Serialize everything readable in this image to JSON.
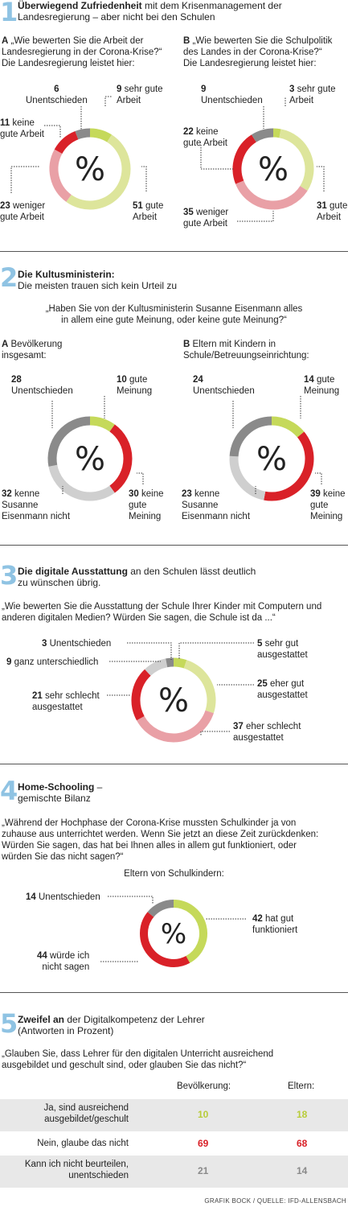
{
  "colors": {
    "green": "#c5d95a",
    "red": "#d92128",
    "pink": "#e9a0a6",
    "dark_gray": "#8a8a8a",
    "light_gray": "#cfcfcf",
    "blue_number": "#8fc3e3"
  },
  "s1": {
    "num": "1",
    "title_bold": "Überwiegend Zufriedenheit",
    "title_rest": " mit dem Krisenmanagement der",
    "title_line2": "Landesregierung – aber nicht bei den Schulen",
    "a_letter": "A",
    "a_q1": " „Wie bewerten Sie die Arbeit der",
    "a_q2": "Landesregierung in der Corona-Krise?“",
    "a_q3": "Die Landesregierung leistet hier:",
    "b_letter": "B",
    "b_q1": " „Wie bewerten Sie die Schulpolitik",
    "b_q2": "des Landes in der Corona-Krise?“",
    "b_q3": "Die Landesregierung leistet hier:"
  },
  "s2": {
    "num": "2",
    "title_bold": "Die Kultusministerin:",
    "title_line2": "Die meisten trauen sich kein Urteil zu",
    "q1": "„Haben Sie von der Kultusministerin Susanne Eisenmann alles",
    "q2": "in allem eine gute Meinung, oder keine gute Meinung?“",
    "a_letter": "A",
    "a_l1": " Bevölkerung",
    "a_l2": "insgesamt:",
    "b_letter": "B",
    "b_l1": " Eltern mit Kindern in",
    "b_l2": "Schule/Betreuungseinrichtung:"
  },
  "s3": {
    "num": "3",
    "title_bold": "Die digitale Ausstattung",
    "title_rest": " an den Schulen lässt deutlich",
    "title_line2": "zu wünschen übrig.",
    "q1": "„Wie bewerten Sie die Ausstattung der Schule Ihrer Kinder mit Computern und",
    "q2": "anderen digitalen Medien? Würden Sie sagen, die Schule ist da ...“"
  },
  "s4": {
    "num": "4",
    "title_bold": "Home-Schooling",
    "title_rest": " –",
    "title_line2": "gemischte Bilanz",
    "q1": "„Während der Hochphase der Corona-Krise mussten Schulkinder ja von",
    "q2": "zuhause aus unterrichtet werden. Wenn Sie jetzt an diese Zeit zurückdenken:",
    "q3": "Würden Sie sagen, das hat bei Ihnen alles in allem gut funktioniert, oder",
    "q4": "würden Sie das nicht sagen?“",
    "sub": "Eltern von Schulkindern:"
  },
  "s5": {
    "num": "5",
    "title_bold": "Zweifel an",
    "title_rest": " der Digitalkompetenz der Lehrer",
    "title_line2": "(Antworten in Prozent)",
    "q1": "„Glauben Sie, dass Lehrer für den digitalen Unterricht ausreichend",
    "q2": "ausgebildet und  geschult sind, oder glauben Sie das nicht?“",
    "col1": "Bevölkerung:",
    "col2": "Eltern:"
  },
  "center_symbol": "%",
  "chart_data": [
    {
      "id": "1A",
      "type": "pie",
      "slices": [
        {
          "value": 9,
          "label": "sehr gute Arbeit",
          "color": "#c5d95a"
        },
        {
          "value": 51,
          "label": "gute Arbeit",
          "color": "#dde59b"
        },
        {
          "value": 23,
          "label": "weniger gute Arbeit",
          "color": "#e9a0a6"
        },
        {
          "value": 11,
          "label": "keine gute Arbeit",
          "color": "#d92128"
        },
        {
          "value": 6,
          "label": "Unentschieden",
          "color": "#8a8a8a"
        }
      ]
    },
    {
      "id": "1B",
      "type": "pie",
      "slices": [
        {
          "value": 3,
          "label": "sehr gute Arbeit",
          "color": "#c5d95a"
        },
        {
          "value": 31,
          "label": "gute Arbeit",
          "color": "#dde59b"
        },
        {
          "value": 35,
          "label": "weniger gute Arbeit",
          "color": "#e9a0a6"
        },
        {
          "value": 22,
          "label": "keine gute Arbeit",
          "color": "#d92128"
        },
        {
          "value": 9,
          "label": "Unentschieden",
          "color": "#8a8a8a"
        }
      ]
    },
    {
      "id": "2A",
      "type": "pie",
      "slices": [
        {
          "value": 10,
          "label": "gute Meinung",
          "color": "#c5d95a"
        },
        {
          "value": 30,
          "label": "keine gute Meining",
          "color": "#d92128"
        },
        {
          "value": 32,
          "label": "kenne Susanne Eisenmann nicht",
          "color": "#cfcfcf"
        },
        {
          "value": 28,
          "label": "Unentschieden",
          "color": "#8a8a8a"
        }
      ]
    },
    {
      "id": "2B",
      "type": "pie",
      "slices": [
        {
          "value": 14,
          "label": "gute Meinung",
          "color": "#c5d95a"
        },
        {
          "value": 39,
          "label": "keine gute Meining",
          "color": "#d92128"
        },
        {
          "value": 23,
          "label": "kenne Susanne Eisenmann nicht",
          "color": "#cfcfcf"
        },
        {
          "value": 24,
          "label": "Unentschieden",
          "color": "#8a8a8a"
        }
      ]
    },
    {
      "id": "3",
      "type": "pie",
      "slices": [
        {
          "value": 5,
          "label": "sehr gut ausgestattet",
          "color": "#c5d95a"
        },
        {
          "value": 25,
          "label": "eher gut ausgestattet",
          "color": "#dde59b"
        },
        {
          "value": 37,
          "label": "eher schlecht ausgestattet",
          "color": "#e9a0a6"
        },
        {
          "value": 21,
          "label": "sehr schlecht ausgestattet",
          "color": "#d92128"
        },
        {
          "value": 9,
          "label": "ganz unterschiedlich",
          "color": "#cfcfcf"
        },
        {
          "value": 3,
          "label": "Unentschieden",
          "color": "#8a8a8a"
        }
      ]
    },
    {
      "id": "4",
      "type": "pie",
      "slices": [
        {
          "value": 42,
          "label": "hat gut funktioniert",
          "color": "#c5d95a"
        },
        {
          "value": 44,
          "label": "würde ich nicht sagen",
          "color": "#d92128"
        },
        {
          "value": 14,
          "label": "Unentschieden",
          "color": "#8a8a8a"
        }
      ]
    },
    {
      "id": "5",
      "type": "table",
      "columns": [
        "Bevölkerung:",
        "Eltern:"
      ],
      "rows": [
        {
          "label1": "Ja, sind ausreichend",
          "label2": "ausgebildet/geschult",
          "values": [
            10,
            18
          ],
          "color": "#b8cc3a"
        },
        {
          "label1": "Nein, glaube das nicht",
          "label2": "",
          "values": [
            69,
            68
          ],
          "color": "#d92128"
        },
        {
          "label1": "Kann ich nicht beurteilen,",
          "label2": "unentschieden",
          "values": [
            21,
            14
          ],
          "color": "#8a8a8a"
        }
      ]
    }
  ],
  "labels": {
    "c1a": {
      "l6n": "6",
      "l6t": "Unentschieden",
      "l9n": "9",
      "l9t": " sehr gute",
      "l9t2": "Arbeit",
      "l11n": "11",
      "l11t": " keine",
      "l11t2": "gute Arbeit",
      "l23n": "23",
      "l23t": " weniger",
      "l23t2": "gute Arbeit",
      "l51n": "51",
      "l51t": " gute",
      "l51t2": "Arbeit"
    },
    "c1b": {
      "l9n": "9",
      "l9t": "Unentschieden",
      "l3n": "3",
      "l3t": " sehr gute",
      "l3t2": "Arbeit",
      "l22n": "22",
      "l22t": " keine",
      "l22t2": "gute Arbeit",
      "l35n": "35",
      "l35t": " weniger",
      "l35t2": "gute Arbeit",
      "l31n": "31",
      "l31t": " gute",
      "l31t2": "Arbeit"
    },
    "c2a": {
      "l28n": "28",
      "l28t": "Unentschieden",
      "l10n": "10",
      "l10t": " gute",
      "l10t2": "Meinung",
      "l32n": "32",
      "l32t": " kenne",
      "l32t2": "Susanne",
      "l32t3": "Eisenmann nicht",
      "l30n": "30",
      "l30t": " keine",
      "l30t2": "gute",
      "l30t3": "Meining"
    },
    "c2b": {
      "l24n": "24",
      "l24t": "Unentschieden",
      "l14n": "14",
      "l14t": " gute",
      "l14t2": "Meinung",
      "l23n": "23",
      "l23t": " kenne",
      "l23t2": "Susanne",
      "l23t3": "Eisenmann nicht",
      "l39n": "39",
      "l39t": " keine",
      "l39t2": "gute",
      "l39t3": "Meining"
    },
    "c3": {
      "l3n": "3",
      "l3t": " Unentschieden",
      "l9n": "9",
      "l9t": " ganz unterschiedlich",
      "l21n": "21",
      "l21t": " sehr schlecht",
      "l21t2": "ausgestattet",
      "l5n": "5",
      "l5t": " sehr gut",
      "l5t2": "ausgestattet",
      "l25n": "25",
      "l25t": " eher gut",
      "l25t2": "ausgestattet",
      "l37n": "37",
      "l37t": " eher schlecht",
      "l37t2": "ausgestattet"
    },
    "c4": {
      "l14n": "14",
      "l14t": " Unentschieden",
      "l42n": "42",
      "l42t": " hat gut",
      "l42t2": "funktioniert",
      "l44n": "44",
      "l44t": " würde ich",
      "l44t2": "nicht sagen"
    }
  },
  "credit": "GRAFIK BOCK / QUELLE: IFD-ALLENSBACH"
}
